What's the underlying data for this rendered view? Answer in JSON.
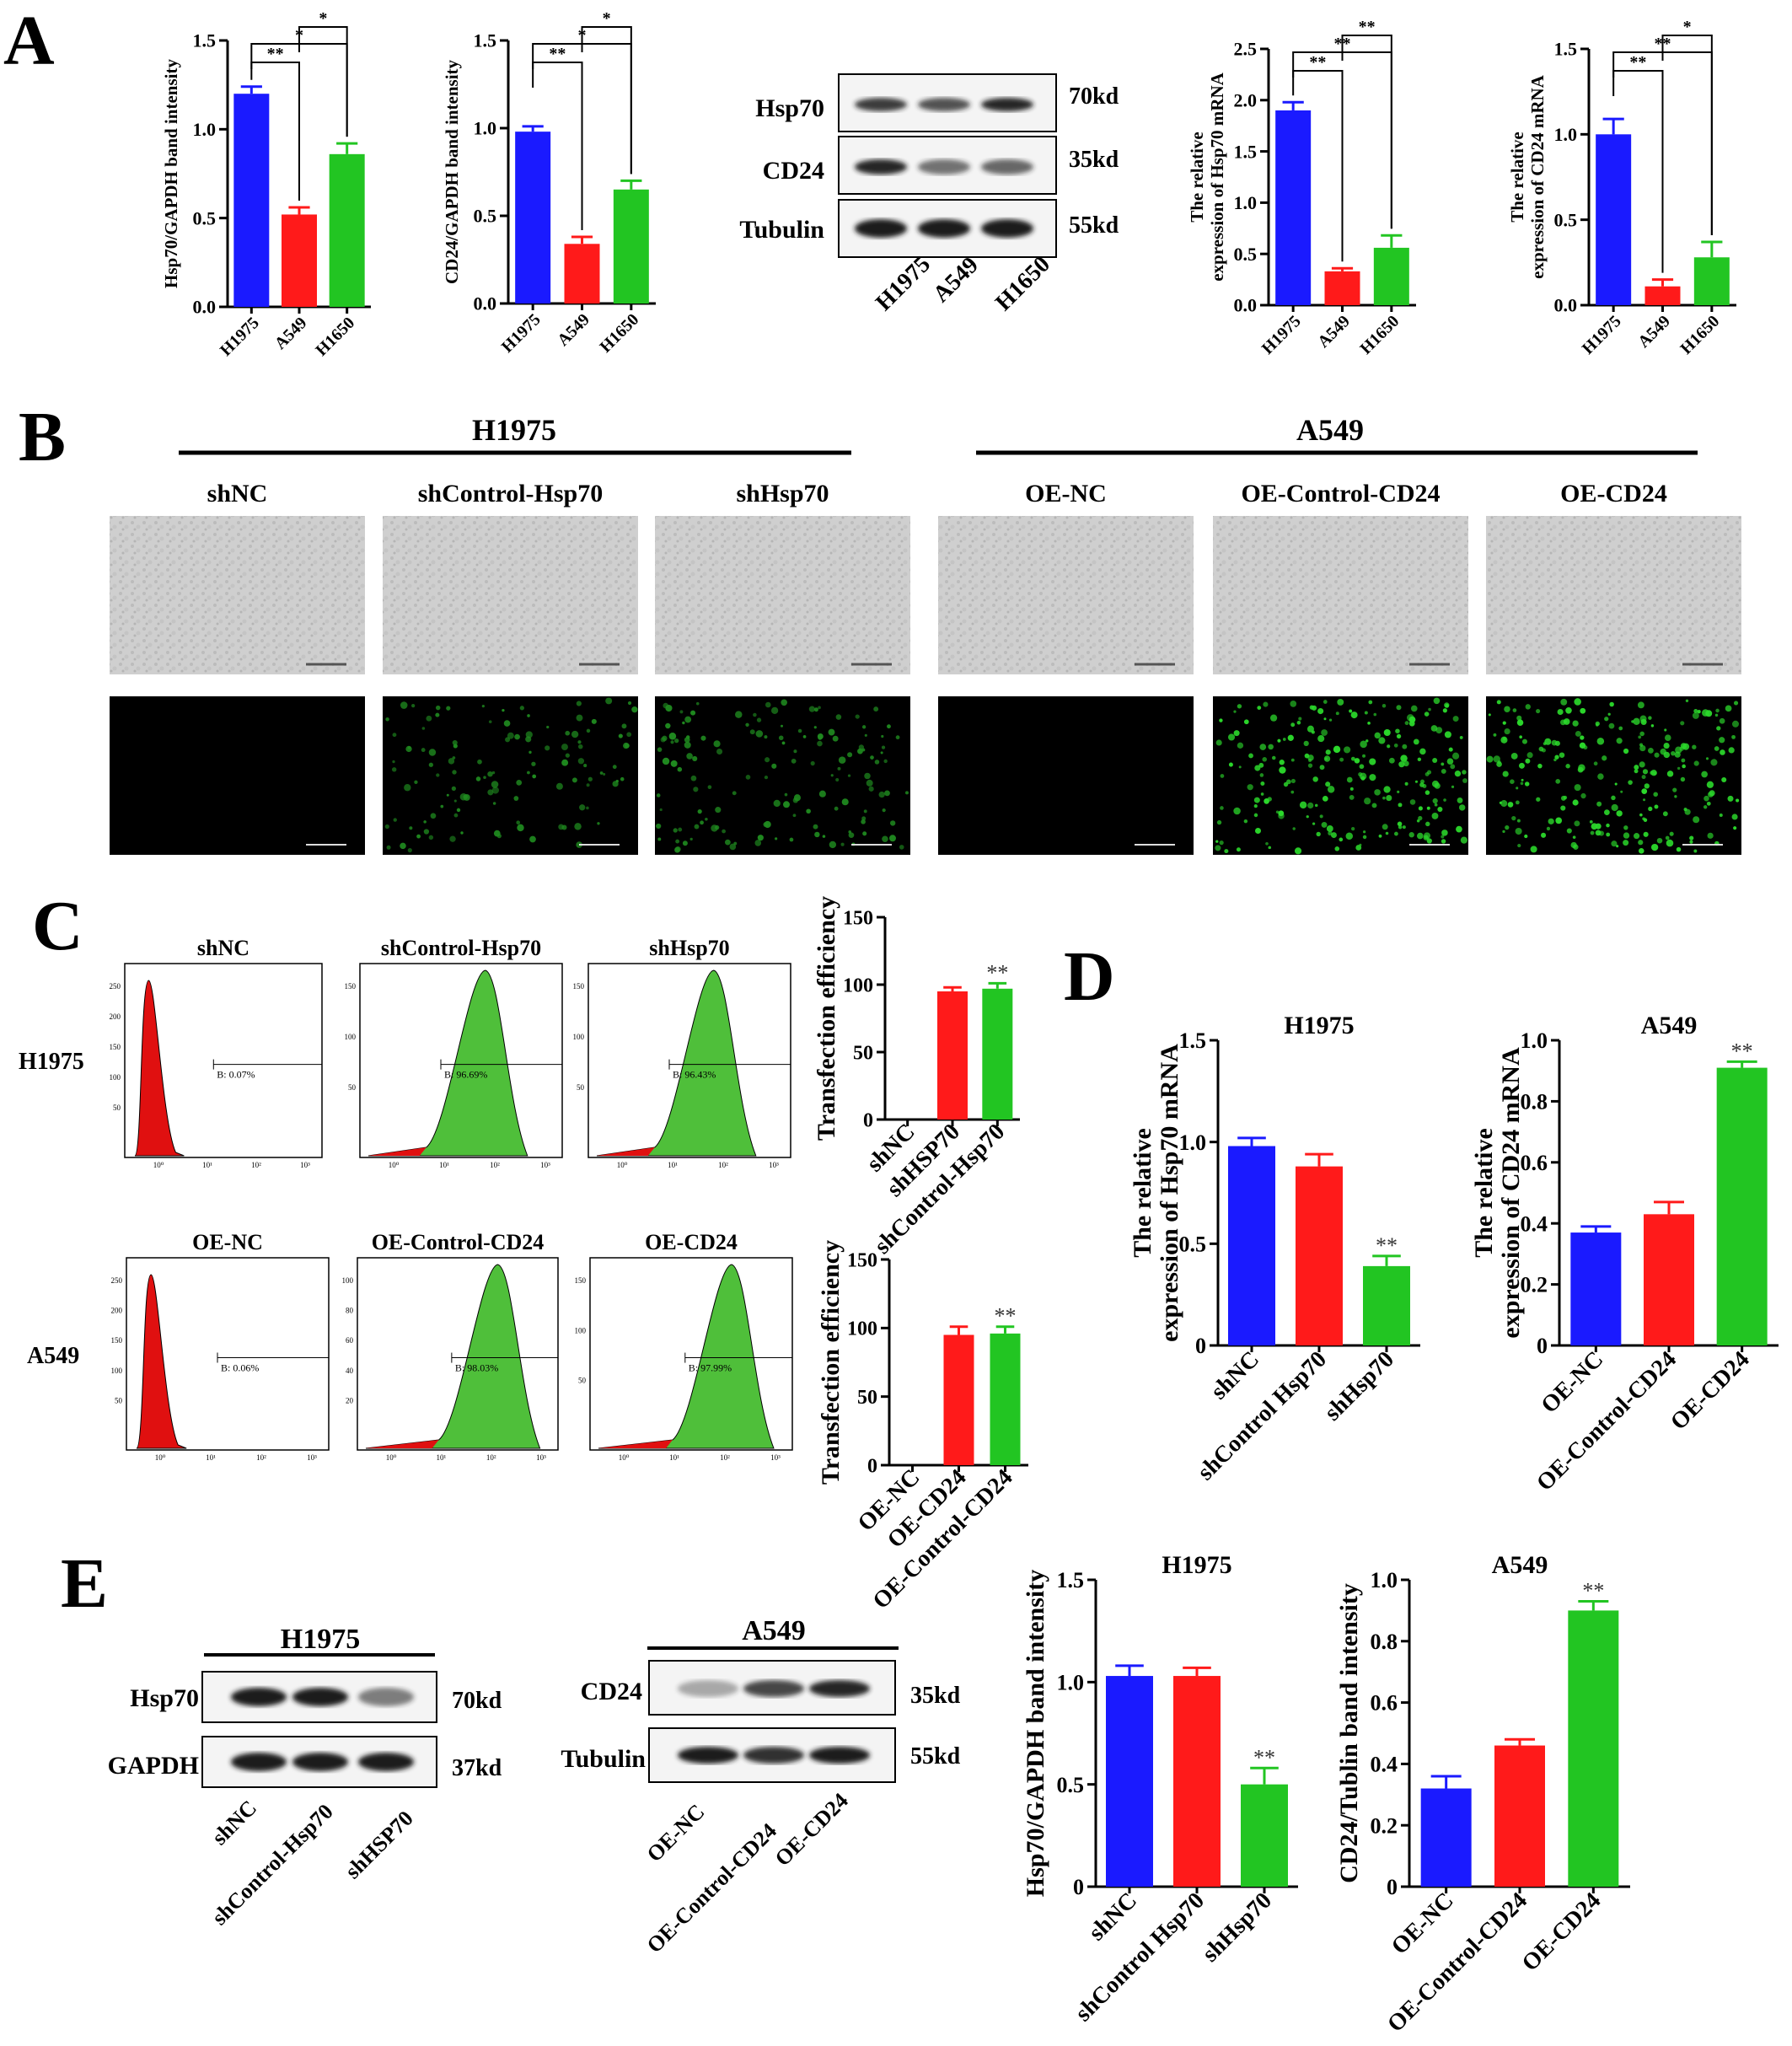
{
  "panel_letters": [
    "A",
    "B",
    "C",
    "D",
    "E"
  ],
  "colors": {
    "blue": "#1a1aff",
    "red": "#ff1a1a",
    "green": "#22c522",
    "wb_band": "#1c1c1c",
    "histo_red": "#e01010",
    "histo_green": "#4fbf3a"
  },
  "a_wb": {
    "rows": [
      "Hsp70",
      "CD24",
      "Tubulin"
    ],
    "kd": [
      "70kd",
      "35kd",
      "55kd"
    ],
    "lanes": [
      "H1975",
      "A549",
      "H1650"
    ],
    "intensity": [
      [
        0.85,
        0.75,
        0.95
      ],
      [
        0.95,
        0.6,
        0.65
      ],
      [
        1,
        1,
        1
      ]
    ]
  },
  "b": {
    "group_titles": [
      "H1975",
      "A549"
    ],
    "labels": [
      "shNC",
      "shControl-Hsp70",
      "shHsp70",
      "OE-NC",
      "OE-Control-CD24",
      "OE-CD24"
    ],
    "fluorescence_level": [
      0,
      0.45,
      0.55,
      0,
      0.85,
      0.85
    ]
  },
  "c": {
    "row_labels": [
      "H1975",
      "A549"
    ],
    "hist_titles": [
      [
        "shNC",
        "shControl-Hsp70",
        "shHsp70"
      ],
      [
        "OE-NC",
        "OE-Control-CD24",
        "OE-CD24"
      ]
    ],
    "gate_texts": [
      [
        "B: 0.07%",
        "B: 96.69%",
        "B: 96.43%"
      ],
      [
        "B: 0.06%",
        "B: 98.03%",
        "B: 97.99%"
      ]
    ],
    "yticks": [
      [
        "250",
        "200",
        "150",
        "100",
        "50"
      ],
      [
        "150",
        "100",
        "50"
      ],
      [
        "150",
        "100",
        "50"
      ],
      [
        "250",
        "200",
        "150",
        "100",
        "50"
      ],
      [
        "100",
        "80",
        "60",
        "40",
        "20"
      ],
      [
        "150",
        "100",
        "50"
      ]
    ],
    "xticks": [
      "10⁰",
      "10¹",
      "10²",
      "10³"
    ]
  },
  "e_wb": {
    "h1975": {
      "title": "H1975",
      "rows": [
        "Hsp70",
        "GAPDH"
      ],
      "kd": [
        "70kd",
        "37kd"
      ],
      "lanes": [
        "shNC",
        "shControl-Hsp70",
        "shHSP70"
      ],
      "intensity": [
        [
          1,
          1,
          0.55
        ],
        [
          1,
          1,
          1
        ]
      ]
    },
    "a549": {
      "title": "A549",
      "rows": [
        "CD24",
        "Tubulin"
      ],
      "kd": [
        "35kd",
        "55kd"
      ],
      "lanes": [
        "OE-NC",
        "OE-Control-CD24",
        "OE-CD24"
      ],
      "intensity": [
        [
          0.35,
          0.8,
          0.95
        ],
        [
          1,
          0.9,
          1
        ]
      ]
    }
  },
  "chart_data": [
    {
      "id": "A1",
      "type": "bar",
      "categories": [
        "H1975",
        "A549",
        "H1650"
      ],
      "values": [
        1.2,
        0.52,
        0.86
      ],
      "errors": [
        0.04,
        0.04,
        0.06
      ],
      "ylabel": "Hsp70/GAPDH band intensity",
      "ylim": [
        0,
        1.5
      ],
      "yticks": [
        "0.0",
        "0.5",
        "1.0",
        "1.5"
      ],
      "significance": [
        {
          "from": 0,
          "to": 1,
          "label": "**"
        },
        {
          "from": 0,
          "to": 2,
          "label": "*"
        },
        {
          "from": 1,
          "to": 2,
          "label": "*"
        }
      ]
    },
    {
      "id": "A2",
      "type": "bar",
      "categories": [
        "H1975",
        "A549",
        "H1650"
      ],
      "values": [
        0.98,
        0.34,
        0.65
      ],
      "errors": [
        0.03,
        0.04,
        0.05
      ],
      "ylabel": "CD24/GAPDH band intensity",
      "ylim": [
        0,
        1.5
      ],
      "yticks": [
        "0.0",
        "0.5",
        "1.0",
        "1.5"
      ],
      "significance": [
        {
          "from": 0,
          "to": 1,
          "label": "**"
        },
        {
          "from": 0,
          "to": 2,
          "label": "*"
        },
        {
          "from": 1,
          "to": 2,
          "label": "*"
        }
      ]
    },
    {
      "id": "A3",
      "type": "bar",
      "categories": [
        "H1975",
        "A549",
        "H1650"
      ],
      "values": [
        1.9,
        0.33,
        0.56
      ],
      "errors": [
        0.08,
        0.03,
        0.12
      ],
      "ylabel": "The relative expression of Hsp70 mRNA",
      "ylim": [
        0,
        2.5
      ],
      "yticks": [
        "0.0",
        "0.5",
        "1.0",
        "1.5",
        "2.0",
        "2.5"
      ],
      "significance": [
        {
          "from": 0,
          "to": 1,
          "label": "**"
        },
        {
          "from": 0,
          "to": 2,
          "label": "**"
        },
        {
          "from": 1,
          "to": 2,
          "label": "**"
        }
      ]
    },
    {
      "id": "A4",
      "type": "bar",
      "categories": [
        "H1975",
        "A549",
        "H1650"
      ],
      "values": [
        1.0,
        0.11,
        0.28
      ],
      "errors": [
        0.09,
        0.04,
        0.09
      ],
      "ylabel": "The relative expression of CD24 mRNA",
      "ylim": [
        0,
        1.5
      ],
      "yticks": [
        "0.0",
        "0.5",
        "1.0",
        "1.5"
      ],
      "significance": [
        {
          "from": 0,
          "to": 1,
          "label": "**"
        },
        {
          "from": 0,
          "to": 2,
          "label": "**"
        },
        {
          "from": 1,
          "to": 2,
          "label": "*"
        }
      ]
    },
    {
      "id": "C1",
      "type": "bar",
      "categories": [
        "shNC",
        "shHSP70",
        "shControl-Hsp70"
      ],
      "values": [
        0,
        95,
        97
      ],
      "errors": [
        0,
        3,
        4
      ],
      "stars": [
        "",
        "",
        "**"
      ],
      "ylabel": "Transfection efficiency",
      "ylim": [
        0,
        150
      ],
      "yticks": [
        "0",
        "50",
        "100",
        "150"
      ]
    },
    {
      "id": "C2",
      "type": "bar",
      "categories": [
        "OE-NC",
        "OE-CD24",
        "OE-Control-CD24"
      ],
      "values": [
        0,
        95,
        96
      ],
      "errors": [
        0,
        6,
        5
      ],
      "stars": [
        "",
        "",
        "**"
      ],
      "ylabel": "Transfection efficiency",
      "ylim": [
        0,
        150
      ],
      "yticks": [
        "0",
        "50",
        "100",
        "150"
      ]
    },
    {
      "id": "D1",
      "type": "bar",
      "title": "H1975",
      "categories": [
        "shNC",
        "shControl Hsp70",
        "shHsp70"
      ],
      "values": [
        0.98,
        0.88,
        0.39
      ],
      "errors": [
        0.04,
        0.06,
        0.05
      ],
      "stars": [
        "",
        "",
        "**"
      ],
      "ylabel": "The relative expression of Hsp70 mRNA",
      "ylim": [
        0,
        1.5
      ],
      "yticks": [
        "0",
        "0.5",
        "1.0",
        "1.5"
      ]
    },
    {
      "id": "D2",
      "type": "bar",
      "title": "A549",
      "categories": [
        "OE-NC",
        "OE-Control-CD24",
        "OE-CD24"
      ],
      "values": [
        0.37,
        0.43,
        0.91
      ],
      "errors": [
        0.02,
        0.04,
        0.02
      ],
      "stars": [
        "",
        "",
        "**"
      ],
      "ylabel": "The relative expression of CD24 mRNA",
      "ylim": [
        0,
        1.0
      ],
      "yticks": [
        "0",
        "0.2",
        "0.4",
        "0.6",
        "0.8",
        "1.0"
      ]
    },
    {
      "id": "E1",
      "type": "bar",
      "title": "H1975",
      "categories": [
        "shNC",
        "shControl Hsp70",
        "shHsp70"
      ],
      "values": [
        1.03,
        1.03,
        0.5
      ],
      "errors": [
        0.05,
        0.04,
        0.08
      ],
      "stars": [
        "",
        "",
        "**"
      ],
      "ylabel": "Hsp70/GAPDH band intensity",
      "ylim": [
        0,
        1.5
      ],
      "yticks": [
        "0",
        "0.5",
        "1.0",
        "1.5"
      ]
    },
    {
      "id": "E2",
      "type": "bar",
      "title": "A549",
      "categories": [
        "OE-NC",
        "OE-Control-CD24",
        "OE-CD24"
      ],
      "values": [
        0.32,
        0.46,
        0.9
      ],
      "errors": [
        0.04,
        0.02,
        0.03
      ],
      "stars": [
        "",
        "",
        "**"
      ],
      "ylabel": "CD24/Tublin band intensity",
      "ylim": [
        0,
        1.0
      ],
      "yticks": [
        "0",
        "0.2",
        "0.4",
        "0.6",
        "0.8",
        "1.0"
      ]
    }
  ]
}
